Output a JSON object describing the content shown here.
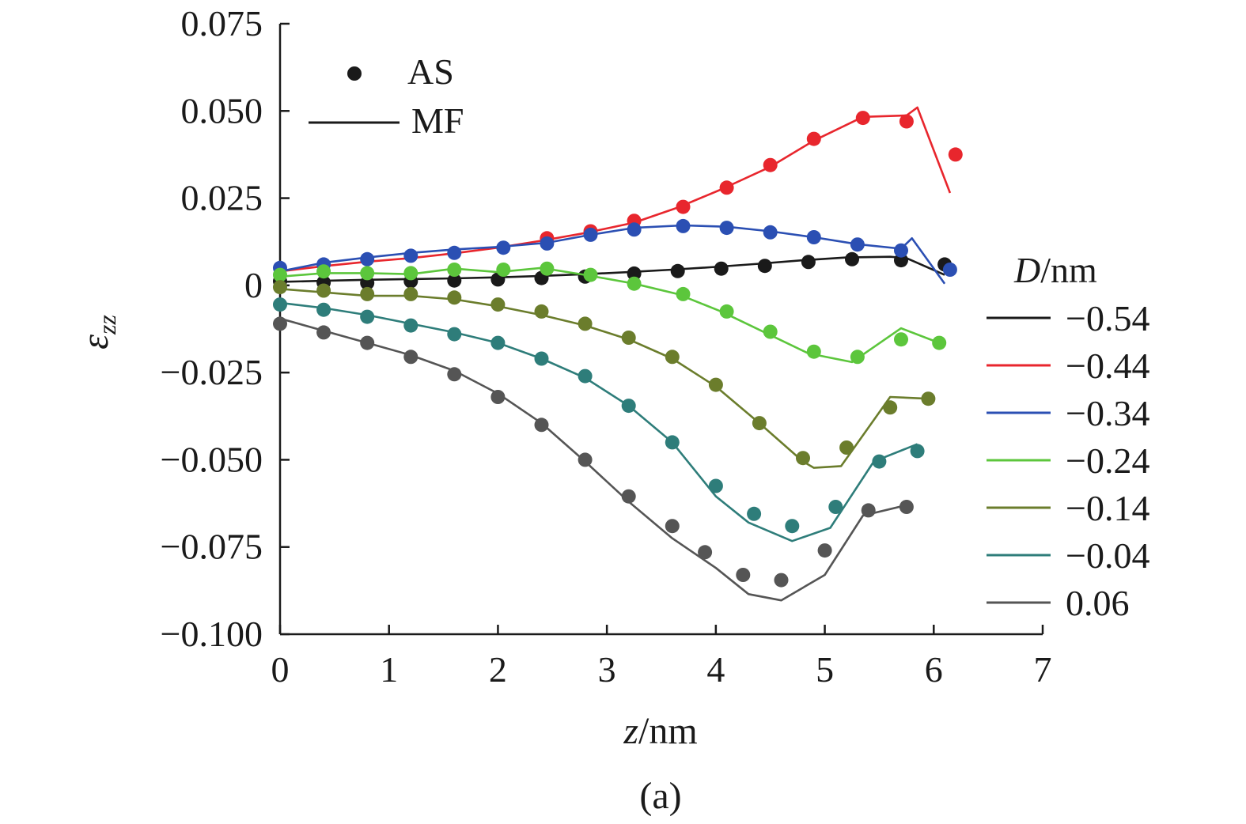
{
  "chart_data": {
    "type": "line",
    "panel_label": "(a)",
    "xlabel": {
      "italic": "z",
      "rest": "/nm"
    },
    "ylabel": "ε",
    "ylabel_sub": "zz",
    "xlim": [
      0,
      7
    ],
    "ylim": [
      -0.1,
      0.075
    ],
    "x_ticks": [
      0,
      1,
      2,
      3,
      4,
      5,
      6,
      7
    ],
    "x_tick_labels": [
      "0",
      "1",
      "2",
      "3",
      "4",
      "5",
      "6",
      "7"
    ],
    "y_ticks": [
      0.075,
      0.05,
      0.025,
      0,
      -0.025,
      -0.05,
      -0.075,
      -0.1
    ],
    "y_tick_labels": [
      "0.075",
      "0.050",
      "0.025",
      "0",
      "−0.025",
      "−0.050",
      "−0.075",
      "−0.100"
    ],
    "grid": false,
    "marker_legend": [
      {
        "kind": "marker",
        "label": "AS"
      },
      {
        "kind": "line",
        "label": "MF"
      }
    ],
    "series_legend_title": {
      "italic": "D",
      "rest": "/nm"
    },
    "series": [
      {
        "name": "−0.54",
        "color": "#1a1a1a",
        "mf": {
          "x": [
            0,
            0.4,
            0.8,
            1.2,
            1.6,
            2.0,
            2.4,
            2.8,
            3.2,
            3.6,
            4.0,
            4.4,
            4.8,
            5.2,
            5.6,
            5.75,
            6.1
          ],
          "y": [
            0.001,
            0.0013,
            0.0016,
            0.0018,
            0.002,
            0.0023,
            0.0027,
            0.0032,
            0.0038,
            0.0045,
            0.0053,
            0.0062,
            0.0072,
            0.008,
            0.0082,
            0.0078,
            0.003
          ]
        },
        "as": {
          "x": [
            0,
            0.4,
            0.8,
            1.2,
            1.6,
            2.0,
            2.4,
            2.8,
            3.25,
            3.65,
            4.05,
            4.45,
            4.85,
            5.25,
            5.7,
            6.1
          ],
          "y": [
            0.0012,
            0.0008,
            0.0007,
            0.0012,
            0.0014,
            0.0017,
            0.0021,
            0.0025,
            0.0034,
            0.0041,
            0.0048,
            0.0056,
            0.0067,
            0.0075,
            0.0072,
            0.006
          ]
        }
      },
      {
        "name": "−0.44",
        "color": "#e8262d",
        "mf": {
          "x": [
            0,
            0.4,
            0.8,
            1.2,
            1.6,
            2.0,
            2.4,
            2.8,
            3.25,
            3.65,
            4.05,
            4.5,
            4.9,
            5.35,
            5.75,
            5.85,
            6.15
          ],
          "y": [
            0.004,
            0.0055,
            0.0068,
            0.0078,
            0.0092,
            0.0108,
            0.0128,
            0.015,
            0.018,
            0.0223,
            0.0275,
            0.034,
            0.0415,
            0.0483,
            0.0487,
            0.051,
            0.0265
          ]
        },
        "as": {
          "x": [
            2.45,
            2.85,
            3.25,
            3.7,
            4.1,
            4.5,
            4.9,
            5.35,
            5.75,
            6.2
          ],
          "y": [
            0.0135,
            0.0155,
            0.0185,
            0.0225,
            0.028,
            0.0345,
            0.042,
            0.048,
            0.047,
            0.0375
          ]
        }
      },
      {
        "name": "−0.34",
        "color": "#2b4fb3",
        "mf": {
          "x": [
            0,
            0.4,
            0.8,
            1.2,
            1.6,
            2.0,
            2.45,
            2.85,
            3.25,
            3.7,
            4.1,
            4.5,
            4.9,
            5.3,
            5.7,
            5.8,
            6.1
          ],
          "y": [
            0.004,
            0.0065,
            0.008,
            0.0093,
            0.0103,
            0.011,
            0.0122,
            0.0145,
            0.0165,
            0.0172,
            0.0168,
            0.0155,
            0.0138,
            0.0118,
            0.0105,
            0.0135,
            0.0005
          ]
        },
        "as": {
          "x": [
            0,
            0.4,
            0.8,
            1.2,
            1.6,
            2.05,
            2.45,
            2.85,
            3.25,
            3.7,
            4.1,
            4.5,
            4.9,
            5.3,
            5.7,
            6.15
          ],
          "y": [
            0.005,
            0.006,
            0.0075,
            0.0085,
            0.0093,
            0.0108,
            0.012,
            0.0145,
            0.016,
            0.017,
            0.0165,
            0.0152,
            0.0138,
            0.0117,
            0.01,
            0.0045
          ]
        }
      },
      {
        "name": "−0.24",
        "color": "#5cc63c",
        "mf": {
          "x": [
            0,
            0.4,
            0.8,
            1.2,
            1.6,
            2.0,
            2.4,
            2.8,
            3.25,
            3.65,
            4.05,
            4.45,
            4.85,
            5.25,
            5.7,
            6.05
          ],
          "y": [
            0.0025,
            0.0035,
            0.0035,
            0.0032,
            0.0048,
            0.0038,
            0.005,
            0.003,
            0.0005,
            -0.0025,
            -0.0075,
            -0.0135,
            -0.0195,
            -0.022,
            -0.0123,
            -0.0165
          ]
        },
        "as": {
          "x": [
            0,
            0.4,
            0.8,
            1.2,
            1.6,
            2.05,
            2.45,
            2.85,
            3.25,
            3.7,
            4.1,
            4.5,
            4.9,
            5.3,
            5.7,
            6.05
          ],
          "y": [
            0.003,
            0.004,
            0.0035,
            0.0035,
            0.0045,
            0.0045,
            0.0048,
            0.003,
            0.0005,
            -0.0025,
            -0.0075,
            -0.0133,
            -0.019,
            -0.0205,
            -0.0155,
            -0.0165
          ]
        }
      },
      {
        "name": "−0.14",
        "color": "#6b7d2c",
        "mf": {
          "x": [
            0,
            0.4,
            0.8,
            1.2,
            1.6,
            2.0,
            2.4,
            2.8,
            3.2,
            3.6,
            4.0,
            4.4,
            4.8,
            4.9,
            5.15,
            5.6,
            5.95
          ],
          "y": [
            -0.001,
            -0.002,
            -0.003,
            -0.003,
            -0.004,
            -0.006,
            -0.0085,
            -0.0115,
            -0.0155,
            -0.021,
            -0.029,
            -0.0395,
            -0.0505,
            -0.0523,
            -0.0518,
            -0.032,
            -0.0325
          ]
        },
        "as": {
          "x": [
            0,
            0.4,
            0.8,
            1.2,
            1.6,
            2.0,
            2.4,
            2.8,
            3.2,
            3.6,
            4.0,
            4.4,
            4.8,
            5.2,
            5.6,
            5.95
          ],
          "y": [
            -0.0005,
            -0.0015,
            -0.0025,
            -0.0025,
            -0.0035,
            -0.0055,
            -0.0075,
            -0.011,
            -0.015,
            -0.0205,
            -0.0285,
            -0.0395,
            -0.0495,
            -0.0465,
            -0.035,
            -0.0325
          ]
        }
      },
      {
        "name": "−0.04",
        "color": "#2e7d7a",
        "mf": {
          "x": [
            0,
            0.4,
            0.8,
            1.2,
            1.6,
            2.0,
            2.4,
            2.8,
            3.2,
            3.6,
            4.0,
            4.3,
            4.7,
            5.05,
            5.45,
            5.85
          ],
          "y": [
            -0.005,
            -0.0065,
            -0.0085,
            -0.011,
            -0.0135,
            -0.0165,
            -0.021,
            -0.0265,
            -0.0345,
            -0.045,
            -0.0605,
            -0.068,
            -0.0733,
            -0.0695,
            -0.0505,
            -0.0455
          ]
        },
        "as": {
          "x": [
            0,
            0.4,
            0.8,
            1.2,
            1.6,
            2.0,
            2.4,
            2.8,
            3.2,
            3.6,
            4.0,
            4.35,
            4.7,
            5.1,
            5.5,
            5.85
          ],
          "y": [
            -0.0055,
            -0.007,
            -0.009,
            -0.0115,
            -0.014,
            -0.0165,
            -0.021,
            -0.026,
            -0.0345,
            -0.045,
            -0.0575,
            -0.0655,
            -0.069,
            -0.0635,
            -0.0505,
            -0.0475
          ]
        }
      },
      {
        "name": "0.06",
        "color": "#555555",
        "mf": {
          "x": [
            0,
            0.4,
            0.8,
            1.2,
            1.6,
            2.0,
            2.4,
            2.8,
            3.2,
            3.6,
            4.0,
            4.3,
            4.6,
            5.0,
            5.35,
            5.75
          ],
          "y": [
            -0.0095,
            -0.013,
            -0.0165,
            -0.02,
            -0.0245,
            -0.031,
            -0.0395,
            -0.0505,
            -0.062,
            -0.0725,
            -0.081,
            -0.0885,
            -0.0903,
            -0.083,
            -0.066,
            -0.063
          ]
        },
        "as": {
          "x": [
            0,
            0.4,
            0.8,
            1.2,
            1.6,
            2.0,
            2.4,
            2.8,
            3.2,
            3.6,
            3.9,
            4.25,
            4.6,
            5.0,
            5.4,
            5.75
          ],
          "y": [
            -0.011,
            -0.0135,
            -0.0165,
            -0.0205,
            -0.0255,
            -0.032,
            -0.04,
            -0.05,
            -0.0605,
            -0.069,
            -0.0765,
            -0.083,
            -0.0845,
            -0.076,
            -0.0645,
            -0.0635
          ]
        }
      }
    ]
  }
}
